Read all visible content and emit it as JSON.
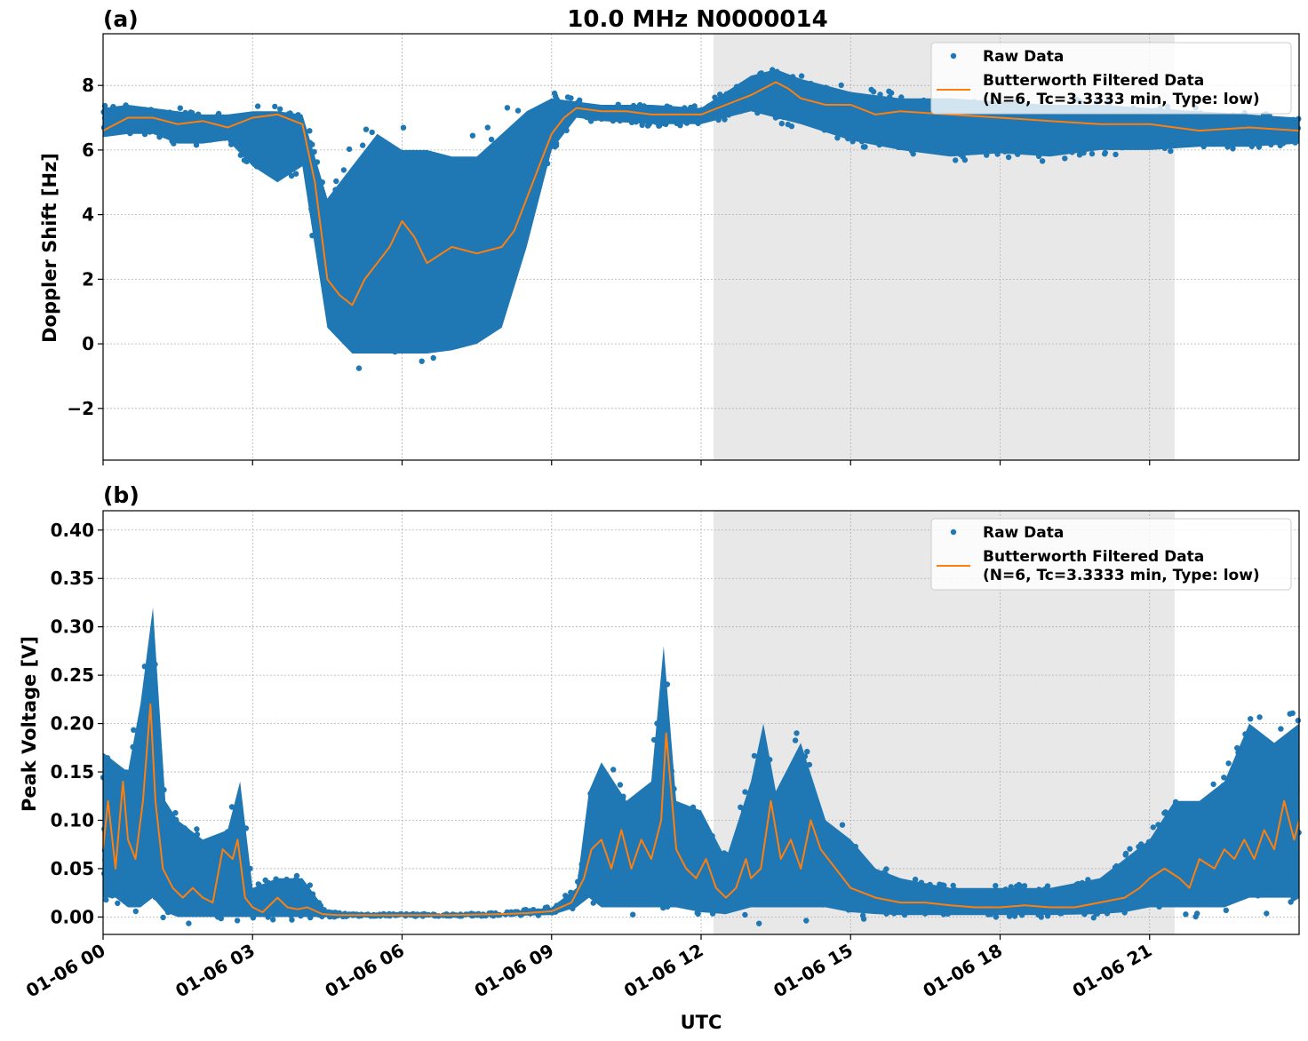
{
  "figure": {
    "title": "10.0 MHz N0000014",
    "xlabel": "UTC",
    "x_ticks": [
      "01-06 00",
      "01-06 03",
      "01-06 06",
      "01-06 09",
      "01-06 12",
      "01-06 15",
      "01-06 18",
      "01-06 21"
    ],
    "colors": {
      "raw": "#1f77b4",
      "filtered": "#ff7f0e",
      "shade": "#e8e8e8",
      "grid": "#b0b0b0"
    }
  },
  "chart_data": [
    {
      "type": "scatter",
      "panel_label": "(a)",
      "ylabel": "Doppler Shift [Hz]",
      "xlim_hours": [
        0,
        24
      ],
      "ylim": [
        -3.6,
        9.6
      ],
      "y_ticks": [
        "−2",
        "0",
        "2",
        "4",
        "6",
        "8"
      ],
      "y_tick_values": [
        -2,
        0,
        2,
        4,
        6,
        8
      ],
      "shaded_region_hours": [
        12.25,
        21.5
      ],
      "grid": true,
      "legend": {
        "position": "top-right",
        "entries": [
          "Raw Data",
          "Butterworth Filtered Data",
          "(N=6, Tc=3.3333 min, Type: low)"
        ]
      },
      "series": [
        {
          "name": "Raw Data",
          "kind": "band",
          "x": [
            0,
            0.5,
            1,
            1.5,
            2,
            2.5,
            3,
            3.5,
            4,
            4.5,
            5,
            5.5,
            6,
            6.5,
            7,
            7.5,
            8,
            8.5,
            9,
            9.5,
            10,
            11,
            12,
            12.5,
            13,
            13.5,
            14,
            15,
            16,
            17,
            18,
            19,
            20,
            21,
            22,
            23,
            24
          ],
          "upper": [
            7.3,
            7.4,
            7.3,
            7.2,
            7.1,
            7.1,
            7.2,
            7.2,
            7.1,
            4.5,
            5.5,
            6.5,
            6.0,
            6.0,
            5.8,
            5.8,
            6.5,
            7.2,
            7.6,
            7.5,
            7.4,
            7.4,
            7.3,
            7.8,
            8.3,
            8.5,
            8.2,
            7.8,
            7.6,
            7.6,
            7.5,
            7.4,
            7.4,
            7.3,
            7.2,
            7.1,
            7.0
          ],
          "lower": [
            6.4,
            6.5,
            6.5,
            6.2,
            6.2,
            6.3,
            5.5,
            5.0,
            5.5,
            0.5,
            -0.3,
            -0.3,
            -0.3,
            -0.3,
            -0.2,
            0.0,
            0.5,
            3.0,
            6.0,
            7.0,
            6.9,
            6.8,
            6.8,
            7.0,
            7.2,
            7.0,
            6.8,
            6.3,
            6.0,
            5.8,
            5.9,
            5.8,
            6.0,
            6.0,
            6.1,
            6.1,
            6.2
          ]
        },
        {
          "name": "Butterworth Filtered Data",
          "kind": "line",
          "x": [
            0,
            0.5,
            1,
            1.5,
            2,
            2.5,
            3,
            3.5,
            4,
            4.25,
            4.5,
            4.75,
            5,
            5.25,
            5.5,
            5.75,
            6,
            6.25,
            6.5,
            7,
            7.5,
            8,
            8.25,
            8.5,
            8.75,
            9,
            9.25,
            9.5,
            10,
            10.5,
            11,
            11.5,
            12,
            12.5,
            13,
            13.25,
            13.5,
            13.75,
            14,
            14.5,
            15,
            15.5,
            16,
            17,
            18,
            19,
            20,
            21,
            22,
            23,
            24
          ],
          "y": [
            6.6,
            7.0,
            7.0,
            6.8,
            6.9,
            6.7,
            7.0,
            7.1,
            6.8,
            5.0,
            2.0,
            1.5,
            1.2,
            2.0,
            2.5,
            3.0,
            3.8,
            3.3,
            2.5,
            3.0,
            2.8,
            3.0,
            3.5,
            4.5,
            5.5,
            6.5,
            7.0,
            7.3,
            7.2,
            7.2,
            7.1,
            7.1,
            7.1,
            7.4,
            7.7,
            7.9,
            8.1,
            7.9,
            7.6,
            7.4,
            7.4,
            7.1,
            7.2,
            7.1,
            7.0,
            6.9,
            6.8,
            6.8,
            6.6,
            6.7,
            6.6
          ]
        }
      ]
    },
    {
      "type": "scatter",
      "panel_label": "(b)",
      "ylabel": "Peak Voltage [V]",
      "xlim_hours": [
        0,
        24
      ],
      "ylim": [
        -0.018,
        0.42
      ],
      "y_ticks": [
        "0.00",
        "0.05",
        "0.10",
        "0.15",
        "0.20",
        "0.25",
        "0.30",
        "0.35",
        "0.40"
      ],
      "y_tick_values": [
        0.0,
        0.05,
        0.1,
        0.15,
        0.2,
        0.25,
        0.3,
        0.35,
        0.4
      ],
      "shaded_region_hours": [
        12.25,
        21.5
      ],
      "grid": true,
      "legend": {
        "position": "top-right",
        "entries": [
          "Raw Data",
          "Butterworth Filtered Data",
          "(N=6, Tc=3.3333 min, Type: low)"
        ]
      },
      "series": [
        {
          "name": "Raw Data",
          "kind": "band",
          "x": [
            0,
            0.25,
            0.5,
            0.75,
            1,
            1.25,
            1.5,
            2,
            2.5,
            2.75,
            3,
            3.5,
            3.75,
            4,
            4.5,
            5,
            6,
            7,
            8,
            9,
            9.5,
            9.75,
            10,
            10.5,
            11,
            11.25,
            11.5,
            12,
            12.5,
            13,
            13.25,
            13.5,
            14,
            14.5,
            15,
            15.5,
            16,
            17,
            18,
            19,
            20,
            20.5,
            21,
            21.5,
            22,
            22.5,
            23,
            23.5,
            24
          ],
          "upper": [
            0.17,
            0.16,
            0.15,
            0.22,
            0.32,
            0.12,
            0.1,
            0.08,
            0.09,
            0.14,
            0.03,
            0.04,
            0.04,
            0.04,
            0.005,
            0.003,
            0.003,
            0.003,
            0.004,
            0.01,
            0.03,
            0.13,
            0.16,
            0.12,
            0.14,
            0.28,
            0.12,
            0.11,
            0.06,
            0.14,
            0.2,
            0.13,
            0.18,
            0.1,
            0.08,
            0.05,
            0.04,
            0.03,
            0.03,
            0.03,
            0.04,
            0.06,
            0.08,
            0.12,
            0.12,
            0.14,
            0.2,
            0.18,
            0.2
          ],
          "lower": [
            0.02,
            0.02,
            0.01,
            0.01,
            0.02,
            0.005,
            0.0,
            0.0,
            0.0,
            0.0,
            0.0,
            0.0,
            0.0,
            0.0,
            0.0,
            0.001,
            0.001,
            0.001,
            0.001,
            0.002,
            0.01,
            0.02,
            0.01,
            0.01,
            0.01,
            0.01,
            0.01,
            0.005,
            0.003,
            0.01,
            0.01,
            0.01,
            0.01,
            0.01,
            0.005,
            0.003,
            0.002,
            0.002,
            0.002,
            0.002,
            0.003,
            0.005,
            0.01,
            0.01,
            0.01,
            0.01,
            0.02,
            0.02,
            0.02
          ]
        },
        {
          "name": "Butterworth Filtered Data",
          "kind": "line",
          "x": [
            0,
            0.1,
            0.25,
            0.4,
            0.5,
            0.65,
            0.8,
            0.95,
            1.05,
            1.2,
            1.4,
            1.6,
            1.8,
            2.0,
            2.2,
            2.4,
            2.6,
            2.7,
            2.85,
            3.0,
            3.2,
            3.5,
            3.7,
            3.9,
            4.1,
            4.4,
            4.7,
            5,
            6,
            7,
            8,
            8.5,
            9,
            9.4,
            9.65,
            9.8,
            10.0,
            10.2,
            10.4,
            10.6,
            10.8,
            11.0,
            11.2,
            11.3,
            11.5,
            11.7,
            11.9,
            12.1,
            12.3,
            12.5,
            12.7,
            12.9,
            13.0,
            13.2,
            13.4,
            13.6,
            13.8,
            14.0,
            14.2,
            14.4,
            14.7,
            15.0,
            15.5,
            16,
            16.5,
            17,
            17.5,
            18,
            18.5,
            19,
            19.5,
            20,
            20.5,
            20.8,
            21.0,
            21.3,
            21.6,
            21.8,
            22.0,
            22.3,
            22.5,
            22.7,
            22.9,
            23.1,
            23.3,
            23.5,
            23.7,
            23.9,
            24
          ],
          "y": [
            0.07,
            0.12,
            0.05,
            0.14,
            0.08,
            0.06,
            0.12,
            0.22,
            0.12,
            0.05,
            0.03,
            0.02,
            0.03,
            0.02,
            0.015,
            0.07,
            0.06,
            0.08,
            0.02,
            0.01,
            0.005,
            0.02,
            0.01,
            0.008,
            0.01,
            0.003,
            0.002,
            0.002,
            0.002,
            0.002,
            0.003,
            0.004,
            0.006,
            0.015,
            0.04,
            0.07,
            0.08,
            0.05,
            0.09,
            0.05,
            0.08,
            0.06,
            0.1,
            0.19,
            0.07,
            0.05,
            0.04,
            0.06,
            0.03,
            0.02,
            0.03,
            0.06,
            0.04,
            0.05,
            0.12,
            0.06,
            0.08,
            0.05,
            0.1,
            0.07,
            0.05,
            0.03,
            0.02,
            0.015,
            0.015,
            0.012,
            0.01,
            0.01,
            0.012,
            0.01,
            0.01,
            0.015,
            0.02,
            0.03,
            0.04,
            0.05,
            0.04,
            0.03,
            0.06,
            0.05,
            0.07,
            0.06,
            0.08,
            0.06,
            0.09,
            0.07,
            0.12,
            0.08,
            0.1
          ]
        }
      ]
    }
  ]
}
